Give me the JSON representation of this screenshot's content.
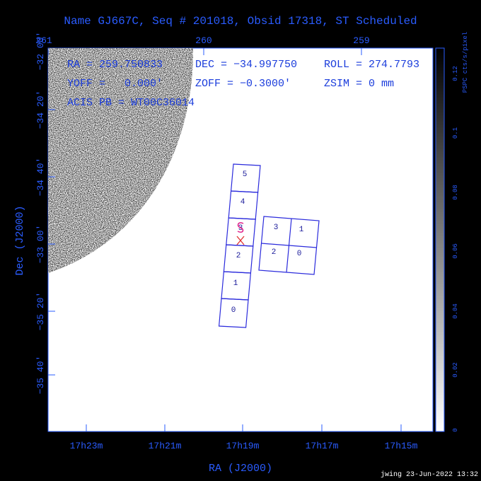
{
  "header": {
    "title": "Name GJ667C, Seq # 201018, Obsid 17318, ST Scheduled"
  },
  "top_axis": {
    "labels": [
      "261",
      "260",
      "259"
    ]
  },
  "bottom_axis": {
    "labels": [
      "17h23m",
      "17h21m",
      "17h19m",
      "17h17m",
      "17h15m"
    ],
    "title": "RA (J2000)"
  },
  "left_axis": {
    "labels": [
      "−32 00'",
      "−34 20'",
      "−34 40'",
      "−33 00'",
      "−35 20'",
      "−35 40'"
    ],
    "title": "Dec (J2000)"
  },
  "colorbar": {
    "title": "PSPC cts/s/pixel",
    "labels": [
      "0.12",
      "0.1",
      "0.08",
      "0.06",
      "0.04",
      "0.02",
      "0"
    ]
  },
  "info": {
    "ra": "RA = 259.750833",
    "dec": "DEC = −34.997750",
    "roll": "ROLL = 274.7793",
    "yoff": "YOFF =   0.000'",
    "zoff": "ZOFF = −0.3000'",
    "zsim": "ZSIM = 0 mm",
    "acis_pb": "ACIS PB = WT00C36014"
  },
  "acis_s": {
    "chips": [
      "5",
      "4",
      "3",
      "2",
      "1",
      "0"
    ]
  },
  "acis_i": {
    "chips": [
      "3",
      "1",
      "2",
      "0"
    ]
  },
  "footer": {
    "text": "jwing 23-Jun-2022 13:32"
  }
}
